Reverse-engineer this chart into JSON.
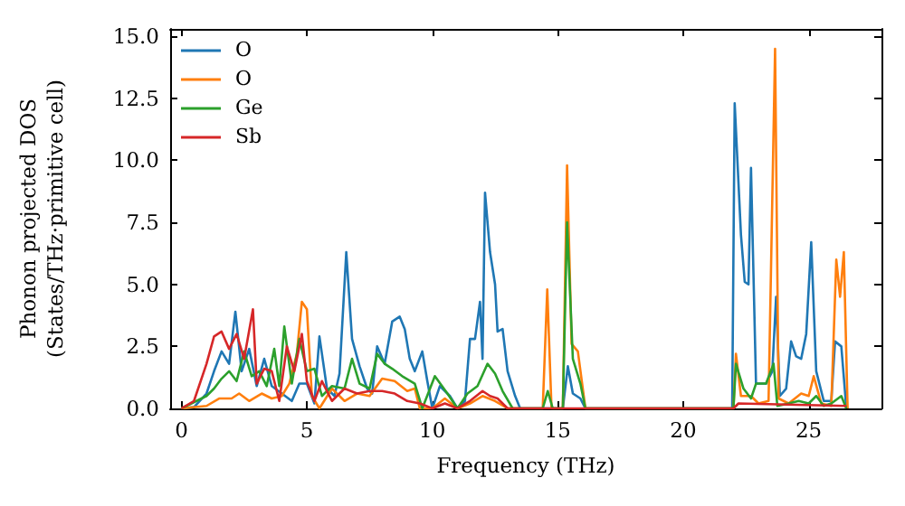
{
  "chart_data": {
    "type": "line",
    "xlabel": "Frequency (THz)",
    "ylabel": "Phonon projected DOS\n(States/THz·primitive cell)",
    "xlim": [
      -0.45,
      27.9
    ],
    "xticks": [
      0,
      5,
      10,
      15,
      20,
      25
    ],
    "ylim": [
      0,
      15.3
    ],
    "yticks": [
      {
        "value": 0,
        "label": "0.0"
      },
      2.5,
      {
        "value": 5,
        "label": "5.0"
      },
      7.5,
      {
        "value": 10,
        "label": "10.0"
      },
      12.5,
      {
        "value": 15,
        "label": "15.0"
      }
    ],
    "grid": false,
    "legend": "top left",
    "marker": "none",
    "line_style": "solid",
    "series": [
      {
        "name": "O",
        "color": "#1f77b4",
        "x": [
          0,
          0.5,
          1.0,
          1.3,
          1.6,
          1.9,
          2.15,
          2.4,
          2.7,
          3.0,
          3.3,
          3.6,
          4.0,
          4.4,
          4.7,
          5.0,
          5.3,
          5.5,
          5.8,
          6.1,
          6.3,
          6.57,
          6.8,
          7.1,
          7.4,
          7.6,
          7.8,
          8.1,
          8.4,
          8.7,
          8.9,
          9.1,
          9.3,
          9.6,
          9.8,
          10.0,
          10.3,
          10.7,
          11.0,
          11.3,
          11.5,
          11.7,
          11.9,
          12.0,
          12.1,
          12.3,
          12.5,
          12.6,
          12.8,
          13.0,
          13.3,
          13.5,
          15.2,
          15.4,
          15.6,
          15.9,
          16.1,
          21.95,
          22.05,
          22.3,
          22.45,
          22.6,
          22.7,
          22.9,
          23.3,
          23.55,
          23.7,
          23.85,
          24.1,
          24.3,
          24.5,
          24.7,
          24.9,
          25.1,
          25.3,
          25.6,
          25.9,
          26.05,
          26.3,
          26.5
        ],
        "values": [
          0,
          0.05,
          0.6,
          1.5,
          2.3,
          1.8,
          3.9,
          1.5,
          2.4,
          0.9,
          2.0,
          0.9,
          0.6,
          0.3,
          1.0,
          1.0,
          0.2,
          2.9,
          0.8,
          0.5,
          1.4,
          6.3,
          2.8,
          1.7,
          0.8,
          0.6,
          2.5,
          1.8,
          3.5,
          3.7,
          3.2,
          2.0,
          1.5,
          2.3,
          1.1,
          0,
          0.9,
          0.5,
          0,
          0.3,
          2.8,
          2.8,
          4.3,
          2.0,
          8.7,
          6.3,
          5.0,
          3.1,
          3.2,
          1.5,
          0.5,
          0,
          0,
          1.7,
          0.6,
          0.4,
          0,
          0,
          12.3,
          7.0,
          5.1,
          5.0,
          9.7,
          1.0,
          1.0,
          1.5,
          4.5,
          0.5,
          0.8,
          2.7,
          2.1,
          2.0,
          3.0,
          6.7,
          1.5,
          0.3,
          0.3,
          2.7,
          2.5,
          0
        ]
      },
      {
        "name": "O",
        "color": "#ff7f0e",
        "x": [
          0,
          1.0,
          1.5,
          2.0,
          2.3,
          2.7,
          3.2,
          3.6,
          4.0,
          4.3,
          4.6,
          4.8,
          5.0,
          5.2,
          5.5,
          6.0,
          6.5,
          7.0,
          7.5,
          8.0,
          8.5,
          9.0,
          9.3,
          9.5,
          10.0,
          10.5,
          11.0,
          11.5,
          12.0,
          12.5,
          13.0,
          14.4,
          14.58,
          14.75,
          15.2,
          15.37,
          15.55,
          15.8,
          16.1,
          22.0,
          22.1,
          22.3,
          22.7,
          23.0,
          23.4,
          23.66,
          23.8,
          24.2,
          24.7,
          25.0,
          25.2,
          25.5,
          25.9,
          26.1,
          26.25,
          26.4,
          26.55
        ],
        "values": [
          0,
          0.1,
          0.4,
          0.4,
          0.6,
          0.3,
          0.6,
          0.4,
          0.5,
          1.0,
          2.2,
          4.3,
          4.0,
          0.5,
          0,
          0.8,
          0.3,
          0.6,
          0.5,
          1.2,
          1.1,
          0.7,
          0.8,
          0,
          0,
          0.4,
          0,
          0.2,
          0.5,
          0.3,
          0,
          0,
          4.8,
          0,
          0,
          9.8,
          2.6,
          2.3,
          0,
          0,
          2.2,
          0.5,
          0.5,
          0.2,
          0.3,
          14.5,
          0.4,
          0.2,
          0.6,
          0.5,
          1.3,
          0.2,
          0.1,
          6.0,
          4.5,
          6.3,
          0
        ]
      },
      {
        "name": "Ge",
        "color": "#2ca02c",
        "x": [
          0,
          1.0,
          1.3,
          1.6,
          1.9,
          2.2,
          2.5,
          2.8,
          3.1,
          3.4,
          3.7,
          3.9,
          4.1,
          4.4,
          4.7,
          5.0,
          5.3,
          5.6,
          6.0,
          6.5,
          6.8,
          7.1,
          7.5,
          7.8,
          8.1,
          8.4,
          8.8,
          9.3,
          9.6,
          10.1,
          10.6,
          11.0,
          11.4,
          11.8,
          12.2,
          12.5,
          12.8,
          13.2,
          14.4,
          14.6,
          14.8,
          15.2,
          15.37,
          15.6,
          15.9,
          16.1,
          22.0,
          22.1,
          22.4,
          22.7,
          22.9,
          23.3,
          23.6,
          23.75,
          24.2,
          24.6,
          25.0,
          25.3,
          25.6,
          25.9,
          26.3,
          26.5
        ],
        "values": [
          0,
          0.5,
          0.8,
          1.2,
          1.5,
          1.1,
          2.3,
          1.3,
          1.5,
          0.9,
          2.4,
          0.9,
          3.3,
          1.0,
          2.8,
          1.5,
          1.6,
          0.5,
          0.9,
          0.8,
          2.0,
          1.0,
          0.8,
          2.2,
          1.8,
          1.6,
          1.3,
          1.0,
          0,
          1.3,
          0.6,
          0,
          0.6,
          0.9,
          1.8,
          1.4,
          0.7,
          0,
          0,
          0.7,
          0,
          0,
          7.5,
          2.0,
          1.0,
          0,
          0,
          1.8,
          0.8,
          0.4,
          1.0,
          1.0,
          1.8,
          0.1,
          0.2,
          0.3,
          0.2,
          0.5,
          0.1,
          0.2,
          0.5,
          0
        ]
      },
      {
        "name": "Sb",
        "color": "#d62728",
        "x": [
          0,
          0.5,
          1.0,
          1.3,
          1.6,
          1.9,
          2.2,
          2.5,
          2.85,
          3.0,
          3.3,
          3.6,
          3.9,
          4.2,
          4.5,
          4.8,
          5.0,
          5.3,
          5.6,
          6.0,
          6.5,
          7.0,
          7.5,
          8.0,
          8.5,
          9.0,
          9.5,
          10.0,
          10.5,
          11.0,
          11.5,
          12.0,
          12.3,
          12.6,
          13.0,
          22.0,
          22.2,
          26.5
        ],
        "values": [
          0,
          0.3,
          1.8,
          2.9,
          3.1,
          2.4,
          3.0,
          2.0,
          4.0,
          1.0,
          1.6,
          1.5,
          0.3,
          2.5,
          1.5,
          3.0,
          1.1,
          0.3,
          1.1,
          0.3,
          0.8,
          0.6,
          0.7,
          0.7,
          0.6,
          0.3,
          0.2,
          0,
          0.2,
          0,
          0.3,
          0.7,
          0.5,
          0.4,
          0,
          0,
          0.2,
          0.1
        ]
      }
    ]
  }
}
